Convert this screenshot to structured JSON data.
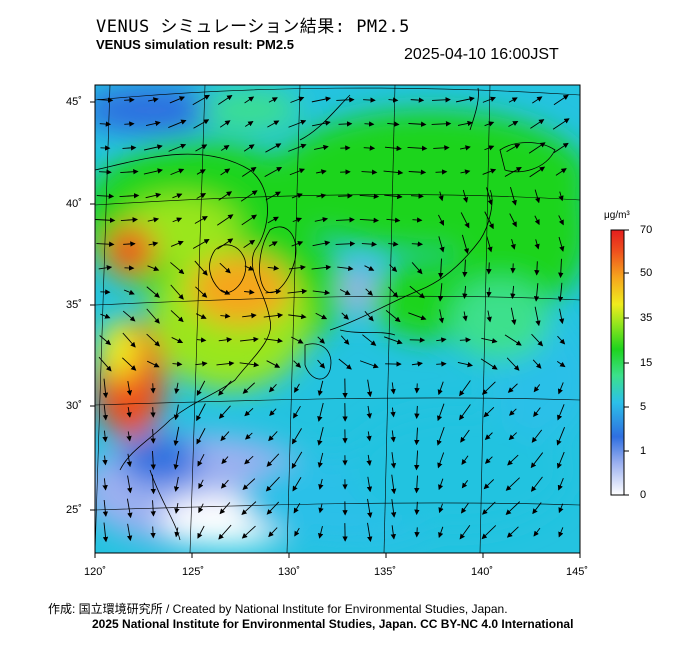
{
  "header": {
    "title_jp": "VENUS シミュレーション結果: PM2.5",
    "title_en": "VENUS simulation result: PM2.5",
    "timestamp": "2025-04-10 16:00JST"
  },
  "map": {
    "lat_labels": [
      "45˚",
      "40˚",
      "35˚",
      "30˚",
      "25˚"
    ],
    "lon_labels": [
      "120˚",
      "125˚",
      "130˚",
      "135˚",
      "140˚",
      "145˚"
    ]
  },
  "colorbar": {
    "unit": "μg/m³",
    "ticks": [
      "70",
      "50",
      "35",
      "15",
      "5",
      "1",
      "0"
    ],
    "colors": [
      "#ffffff",
      "#9bb0f0",
      "#2f6fe0",
      "#2cc0e8",
      "#3ce08c",
      "#1ed41e",
      "#9ae61e",
      "#f0ec1e",
      "#f6a61e",
      "#ee501e",
      "#e41e1e"
    ]
  },
  "credits": {
    "line1": "作成: 国立環境研究所 / Created by National Institute for Environmental Studies, Japan.",
    "line2": "2025 National Institute for Environmental Studies, Japan. CC BY-NC 4.0 International"
  }
}
